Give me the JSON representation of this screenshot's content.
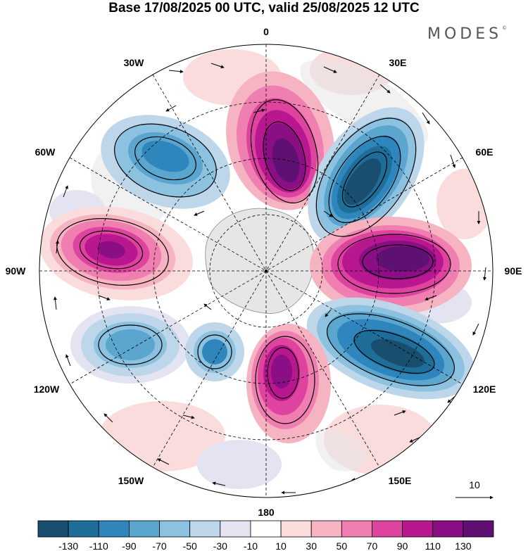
{
  "title": "Base 17/08/2025 00 UTC, valid 25/08/2025 12 UTC",
  "brand": "MODES",
  "brand_mark": "©",
  "longitude_labels": {
    "lon_0": "0",
    "lon_30e": "30E",
    "lon_60e": "60E",
    "lon_90e": "90E",
    "lon_120e": "120E",
    "lon_150e": "150E",
    "lon_180": "180",
    "lon_150w": "150W",
    "lon_120w": "120W",
    "lon_90w": "90W",
    "lon_60w": "60W",
    "lon_30w": "30W"
  },
  "vector_reference": {
    "label": "10"
  },
  "colorbar": {
    "ticks": [
      "-130",
      "-110",
      "-90",
      "-70",
      "-50",
      "-30",
      "-10",
      "10",
      "30",
      "50",
      "70",
      "90",
      "110",
      "130"
    ],
    "colors": [
      "#1a4e6e",
      "#1f6d99",
      "#2e86bd",
      "#5aa6cf",
      "#8cc2e0",
      "#bdd6ea",
      "#e3e3f2",
      "#ffffff",
      "#fbdcdc",
      "#f6b4c2",
      "#ef7fb0",
      "#df43a0",
      "#b8178f",
      "#8a0f84",
      "#5e1173"
    ]
  },
  "colors": {
    "background": "#ffffff",
    "land": "#e6e6e6",
    "coast": "#8a8a8a",
    "grid": "#000000"
  }
}
